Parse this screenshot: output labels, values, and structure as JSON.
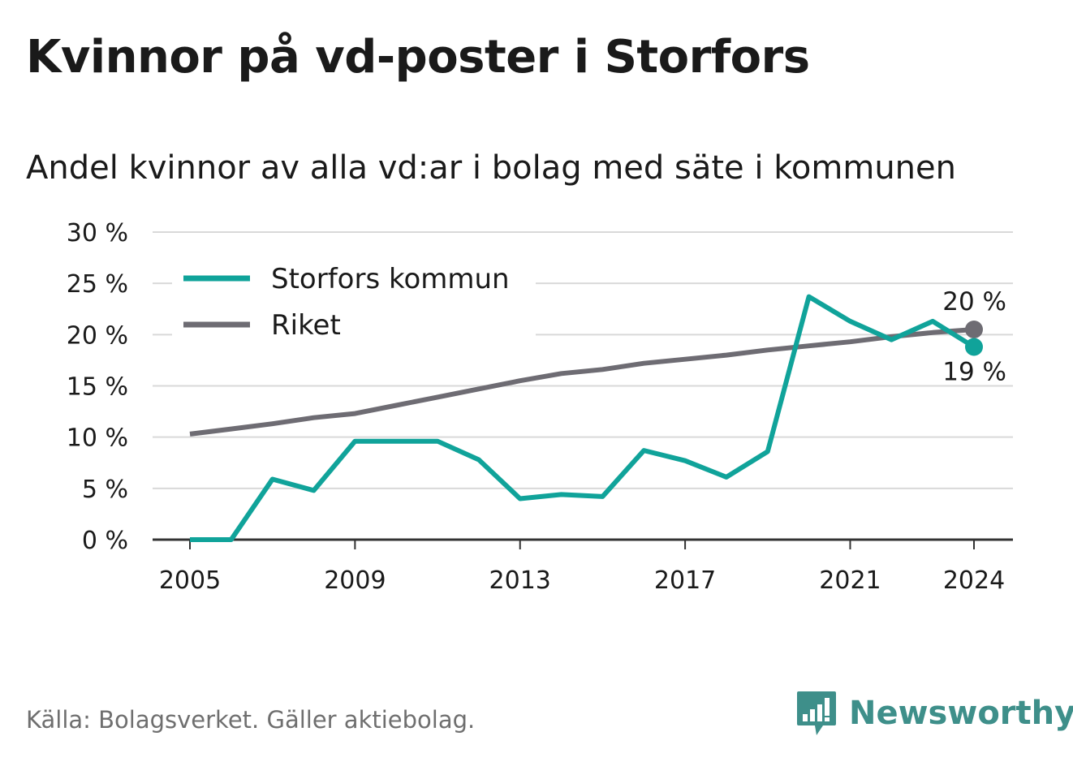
{
  "header": {
    "title": "Kvinnor på vd-poster i Storfors",
    "subtitle": "Andel kvinnor av alla vd:ar i bolag med säte i kommunen"
  },
  "footer": {
    "source": "Källa: Bolagsverket. Gäller aktiebolag.",
    "brand": "Newsworthy"
  },
  "colors": {
    "storfors": "#10a39a",
    "riket": "#6e6c73",
    "grid": "#d9d9d9",
    "axis": "#333333",
    "brand": "#3e8f8a"
  },
  "icons": {
    "brand_logo": "bar-chart-speech-bubble-icon"
  },
  "chart_data": {
    "type": "line",
    "x": [
      2005,
      2006,
      2007,
      2008,
      2009,
      2010,
      2011,
      2012,
      2013,
      2014,
      2015,
      2016,
      2017,
      2018,
      2019,
      2020,
      2021,
      2022,
      2023,
      2024
    ],
    "series": [
      {
        "name": "Storfors kommun",
        "color": "#10a39a",
        "values": [
          0,
          0,
          5.9,
          4.8,
          9.6,
          9.6,
          9.6,
          7.8,
          4.0,
          4.4,
          4.2,
          8.7,
          7.7,
          6.1,
          8.6,
          23.7,
          21.3,
          19.5,
          21.3,
          18.8
        ],
        "end_label": "19 %"
      },
      {
        "name": "Riket",
        "color": "#6e6c73",
        "values": [
          10.3,
          10.8,
          11.3,
          11.9,
          12.3,
          13.1,
          13.9,
          14.7,
          15.5,
          16.2,
          16.6,
          17.2,
          17.6,
          18.0,
          18.5,
          18.9,
          19.3,
          19.8,
          20.2,
          20.5
        ],
        "end_label": "20 %"
      }
    ],
    "y_ticks": [
      0,
      5,
      10,
      15,
      20,
      25,
      30
    ],
    "y_tick_labels": [
      "0 %",
      "5 %",
      "10 %",
      "15 %",
      "20 %",
      "25 %",
      "30 %"
    ],
    "x_ticks": [
      2005,
      2009,
      2013,
      2017,
      2021,
      2024
    ],
    "x_tick_labels": [
      "2005",
      "2009",
      "2013",
      "2017",
      "2021",
      "2024"
    ],
    "ylim": [
      0,
      30
    ],
    "xlim": [
      2005,
      2024
    ],
    "grid": true,
    "legend_position": "top-left"
  }
}
